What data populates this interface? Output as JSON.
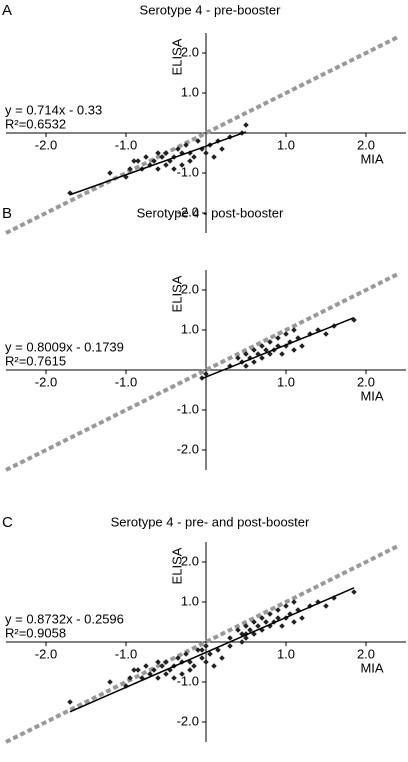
{
  "chart_data": [
    {
      "type": "scatter",
      "panel_label": "A",
      "title": "Serotype 4 - pre-booster",
      "x_label": "MIA",
      "y_label": "ELISA",
      "equation": "y = 0.714x - 0.33",
      "r_squared": "R²=0.6532",
      "xlim": [
        -2.5,
        2.5
      ],
      "ylim": [
        -2.5,
        2.5
      ],
      "xticks": [
        {
          "value": -2,
          "label": "-2.0"
        },
        {
          "value": -1,
          "label": "-1.0"
        },
        {
          "value": 1,
          "label": "1.0"
        },
        {
          "value": 2,
          "label": "2.0"
        }
      ],
      "yticks": [
        {
          "value": 2,
          "label": "2.0"
        },
        {
          "value": 1,
          "label": "1.0"
        },
        {
          "value": -1,
          "label": "-1.0"
        },
        {
          "value": -2,
          "label": "-2.0"
        }
      ],
      "color": "#222222",
      "x": [
        -1.7,
        -1.2,
        -1.0,
        -0.95,
        -0.9,
        -0.8,
        -0.75,
        -0.7,
        -0.65,
        -0.6,
        -0.55,
        -0.5,
        -0.5,
        -0.45,
        -0.4,
        -0.35,
        -0.3,
        -0.3,
        -0.25,
        -0.2,
        -0.15,
        -0.1,
        -0.05,
        0.0,
        0.05,
        0.1,
        0.15,
        0.2,
        0.3,
        0.45,
        0.5,
        -0.6,
        -0.4,
        -0.2,
        -0.85
      ],
      "values": [
        -1.5,
        -1.0,
        -1.1,
        -0.9,
        -0.7,
        -0.9,
        -0.6,
        -0.8,
        -0.7,
        -0.9,
        -0.6,
        -0.8,
        -0.5,
        -0.7,
        -0.6,
        -0.4,
        -0.5,
        -0.8,
        -0.3,
        -0.5,
        -0.6,
        -0.2,
        -0.4,
        -0.5,
        -0.3,
        -0.6,
        -0.2,
        -0.4,
        -0.1,
        0.0,
        0.2,
        -0.5,
        -0.9,
        -0.7,
        -0.7
      ],
      "fit_line": {
        "color": "#000000",
        "x": [
          -1.7,
          0.5
        ],
        "values": [
          -1.544,
          0.027
        ]
      },
      "identity_line": {
        "color": "#999999",
        "x": [
          -2.5,
          2.4
        ],
        "values": [
          -2.5,
          2.4
        ]
      }
    },
    {
      "type": "scatter",
      "panel_label": "B",
      "title": "Serotype 4 - post-booster",
      "x_label": "MIA",
      "y_label": "ELISA",
      "equation": "y = 0.8009x - 0.1739",
      "r_squared": "R²=0.7615",
      "xlim": [
        -2.5,
        2.5
      ],
      "ylim": [
        -2.5,
        2.5
      ],
      "xticks": [
        {
          "value": -2,
          "label": "-2.0"
        },
        {
          "value": -1,
          "label": "-1.0"
        },
        {
          "value": 1,
          "label": "1.0"
        },
        {
          "value": 2,
          "label": "2.0"
        }
      ],
      "yticks": [
        {
          "value": 2,
          "label": "2.0"
        },
        {
          "value": 1,
          "label": "1.0"
        },
        {
          "value": -1,
          "label": "-1.0"
        },
        {
          "value": -2,
          "label": "-2.0"
        }
      ],
      "color": "#222222",
      "x": [
        -0.05,
        0.0,
        0.3,
        0.4,
        0.45,
        0.5,
        0.5,
        0.55,
        0.6,
        0.6,
        0.65,
        0.7,
        0.7,
        0.75,
        0.8,
        0.8,
        0.85,
        0.9,
        0.9,
        0.95,
        1.0,
        1.0,
        1.05,
        1.1,
        1.1,
        1.15,
        1.2,
        1.3,
        1.4,
        1.5,
        1.6,
        1.85
      ],
      "values": [
        -0.2,
        -0.1,
        0.1,
        0.3,
        0.2,
        0.4,
        0.1,
        0.3,
        0.5,
        0.2,
        0.4,
        0.6,
        0.3,
        0.5,
        0.7,
        0.4,
        0.5,
        0.8,
        0.6,
        0.4,
        0.9,
        0.6,
        0.7,
        1.0,
        0.5,
        0.8,
        0.6,
        0.9,
        1.0,
        0.9,
        1.1,
        1.25
      ],
      "fit_line": {
        "color": "#000000",
        "x": [
          -0.05,
          1.85
        ],
        "values": [
          -0.2139,
          1.3078
        ]
      },
      "identity_line": {
        "color": "#999999",
        "x": [
          -2.5,
          2.4
        ],
        "values": [
          -2.5,
          2.4
        ]
      }
    },
    {
      "type": "scatter",
      "panel_label": "C",
      "title": "Serotype 4 - pre- and post-booster",
      "x_label": "MIA",
      "y_label": "ELISA",
      "equation": "y = 0.8732x - 0.2596",
      "r_squared": "R²=0.9058",
      "xlim": [
        -2.5,
        2.5
      ],
      "ylim": [
        -2.5,
        2.5
      ],
      "xticks": [
        {
          "value": -2,
          "label": "-2.0"
        },
        {
          "value": -1,
          "label": "-1.0"
        },
        {
          "value": 1,
          "label": "1.0"
        },
        {
          "value": 2,
          "label": "2.0"
        }
      ],
      "yticks": [
        {
          "value": 2,
          "label": "2.0"
        },
        {
          "value": 1,
          "label": "1.0"
        },
        {
          "value": -1,
          "label": "-1.0"
        },
        {
          "value": -2,
          "label": "-2.0"
        }
      ],
      "color": "#222222",
      "x": [
        -1.7,
        -1.2,
        -1.0,
        -0.95,
        -0.9,
        -0.8,
        -0.75,
        -0.7,
        -0.65,
        -0.6,
        -0.55,
        -0.5,
        -0.5,
        -0.45,
        -0.4,
        -0.35,
        -0.3,
        -0.3,
        -0.25,
        -0.2,
        -0.15,
        -0.1,
        -0.05,
        0.0,
        0.05,
        0.1,
        0.15,
        0.2,
        0.3,
        0.45,
        0.5,
        -0.6,
        -0.4,
        -0.2,
        -0.85,
        -0.05,
        0.0,
        0.3,
        0.4,
        0.45,
        0.5,
        0.5,
        0.55,
        0.6,
        0.6,
        0.65,
        0.7,
        0.7,
        0.75,
        0.8,
        0.8,
        0.85,
        0.9,
        0.9,
        0.95,
        1.0,
        1.0,
        1.05,
        1.1,
        1.1,
        1.15,
        1.2,
        1.3,
        1.4,
        1.5,
        1.6,
        1.85
      ],
      "values": [
        -1.5,
        -1.0,
        -1.1,
        -0.9,
        -0.7,
        -0.9,
        -0.6,
        -0.8,
        -0.7,
        -0.9,
        -0.6,
        -0.8,
        -0.5,
        -0.7,
        -0.6,
        -0.4,
        -0.5,
        -0.8,
        -0.3,
        -0.5,
        -0.6,
        -0.2,
        -0.4,
        -0.5,
        -0.3,
        -0.6,
        -0.2,
        -0.4,
        -0.1,
        0.0,
        0.2,
        -0.5,
        -0.9,
        -0.7,
        -0.7,
        -0.2,
        -0.1,
        0.1,
        0.3,
        0.2,
        0.4,
        0.1,
        0.3,
        0.5,
        0.2,
        0.4,
        0.6,
        0.3,
        0.5,
        0.7,
        0.4,
        0.5,
        0.8,
        0.6,
        0.4,
        0.9,
        0.6,
        0.7,
        1.0,
        0.5,
        0.8,
        0.6,
        0.9,
        1.0,
        0.9,
        1.1,
        1.25
      ],
      "fit_line": {
        "color": "#000000",
        "x": [
          -1.7,
          1.85
        ],
        "values": [
          -1.744,
          1.356
        ]
      },
      "identity_line": {
        "color": "#999999",
        "x": [
          -2.5,
          2.4
        ],
        "values": [
          -2.5,
          2.4
        ]
      }
    }
  ]
}
